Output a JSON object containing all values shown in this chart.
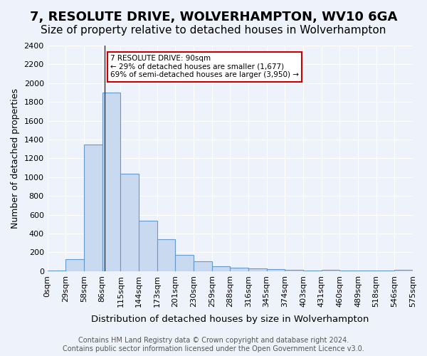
{
  "title": "7, RESOLUTE DRIVE, WOLVERHAMPTON, WV10 6GA",
  "subtitle": "Size of property relative to detached houses in Wolverhampton",
  "xlabel": "Distribution of detached houses by size in Wolverhampton",
  "ylabel": "Number of detached properties",
  "bar_labels": [
    "0sqm",
    "29sqm",
    "58sqm",
    "86sqm",
    "115sqm",
    "144sqm",
    "173sqm",
    "201sqm",
    "230sqm",
    "259sqm",
    "288sqm",
    "316sqm",
    "345sqm",
    "374sqm",
    "403sqm",
    "431sqm",
    "460sqm",
    "489sqm",
    "518sqm",
    "546sqm",
    "575sqm"
  ],
  "bar_values": [
    10,
    130,
    1350,
    1900,
    1040,
    540,
    340,
    170,
    105,
    55,
    35,
    30,
    20,
    15,
    10,
    15,
    5,
    10,
    5,
    15
  ],
  "bar_color": "#c9d9f0",
  "bar_edge_color": "#6699cc",
  "property_line_x": 2,
  "annotation_title": "7 RESOLUTE DRIVE: 90sqm",
  "annotation_line1": "← 29% of detached houses are smaller (1,677)",
  "annotation_line2": "69% of semi-detached houses are larger (3,950) →",
  "annotation_box_color": "#ffffff",
  "annotation_box_edge": "#cc0000",
  "ylim": [
    0,
    2400
  ],
  "yticks": [
    0,
    200,
    400,
    600,
    800,
    1000,
    1200,
    1400,
    1600,
    1800,
    2000,
    2200,
    2400
  ],
  "footer_line1": "Contains HM Land Registry data © Crown copyright and database right 2024.",
  "footer_line2": "Contains public sector information licensed under the Open Government Licence v3.0.",
  "background_color": "#eef2fa",
  "plot_bg_color": "#eef2fa",
  "grid_color": "#ffffff",
  "title_fontsize": 13,
  "subtitle_fontsize": 11,
  "axis_label_fontsize": 9,
  "tick_fontsize": 8,
  "footer_fontsize": 7
}
